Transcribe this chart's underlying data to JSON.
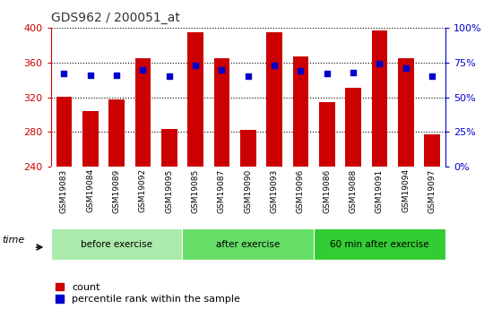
{
  "title": "GDS962 / 200051_at",
  "samples": [
    "GSM19083",
    "GSM19084",
    "GSM19089",
    "GSM19092",
    "GSM19095",
    "GSM19085",
    "GSM19087",
    "GSM19090",
    "GSM19093",
    "GSM19096",
    "GSM19086",
    "GSM19088",
    "GSM19091",
    "GSM19094",
    "GSM19097"
  ],
  "counts": [
    321,
    304,
    318,
    365,
    284,
    395,
    365,
    283,
    395,
    367,
    315,
    331,
    397,
    365,
    277
  ],
  "percentile_ranks": [
    67,
    66,
    66,
    70,
    65,
    73,
    70,
    65,
    73,
    69,
    67,
    68,
    74,
    71,
    65
  ],
  "groups": [
    {
      "label": "before exercise",
      "start": 0,
      "end": 5,
      "color": "#aaeaaa"
    },
    {
      "label": "after exercise",
      "start": 5,
      "end": 10,
      "color": "#66dd66"
    },
    {
      "label": "60 min after exercise",
      "start": 10,
      "end": 15,
      "color": "#33cc33"
    }
  ],
  "ymin": 240,
  "ymax": 400,
  "yticks": [
    240,
    280,
    320,
    360,
    400
  ],
  "y2min": 0,
  "y2max": 100,
  "y2ticks": [
    0,
    25,
    50,
    75,
    100
  ],
  "bar_color": "#cc0000",
  "dot_color": "#0000cc",
  "bar_width": 0.6,
  "tick_bg_color": "#c8c8c8",
  "left_axis_color": "#cc0000",
  "right_axis_color": "#0000cc",
  "grid_color": "#000000",
  "legend_count_label": "count",
  "legend_pct_label": "percentile rank within the sample"
}
